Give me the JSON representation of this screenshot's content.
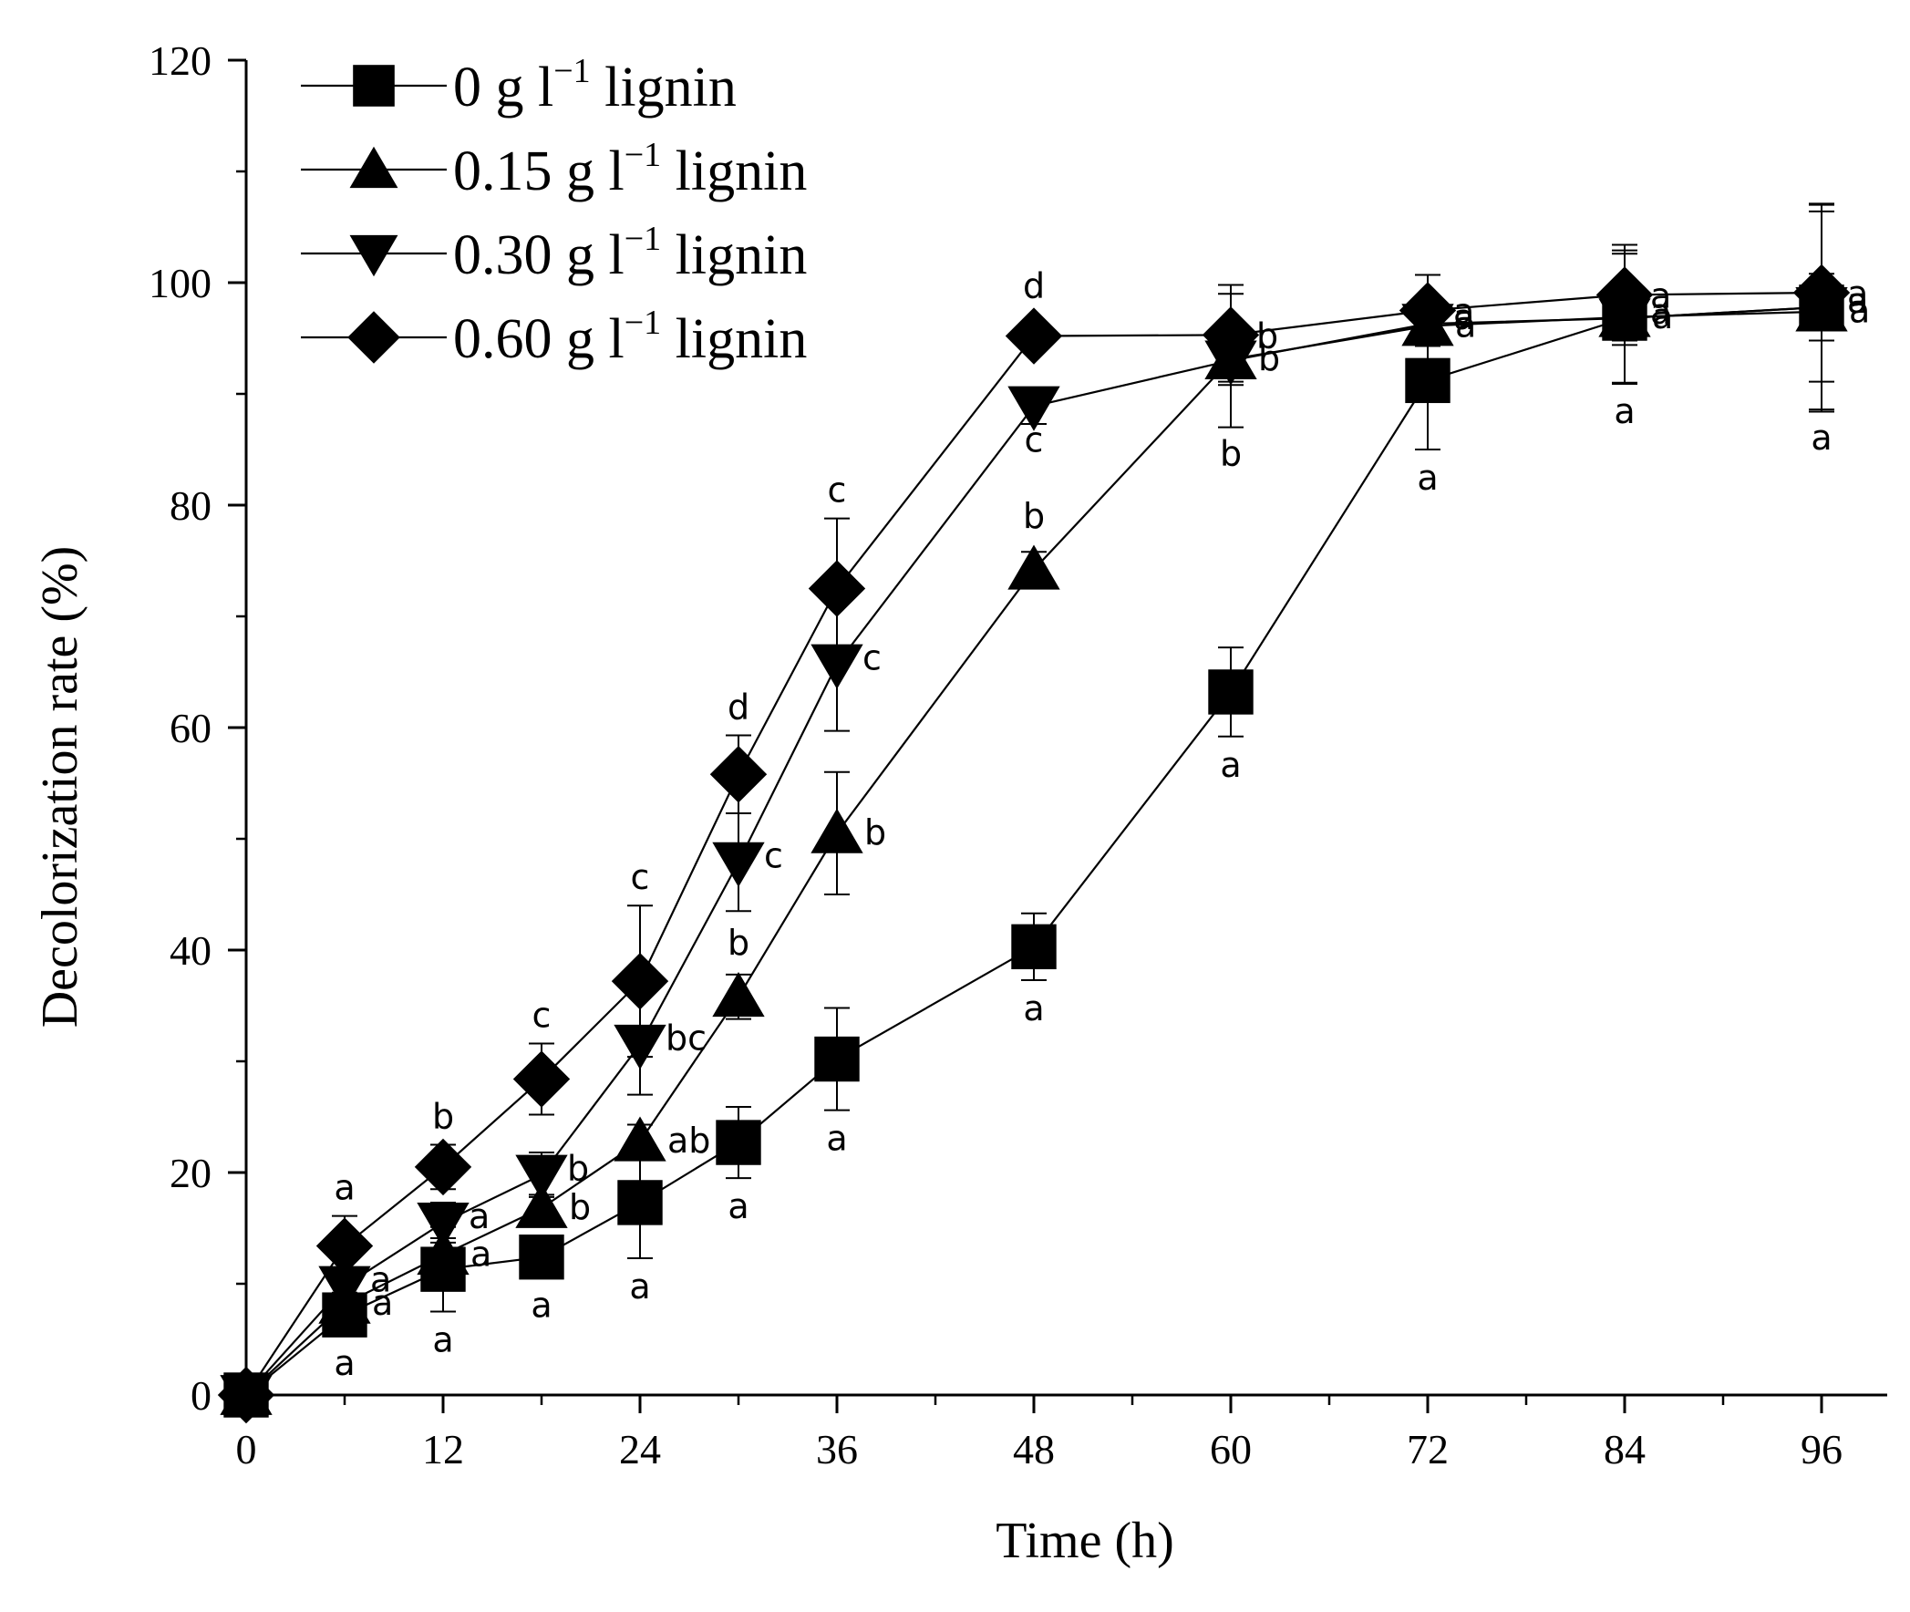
{
  "chart_data": {
    "type": "line",
    "title": "",
    "xlabel": "Time (h)",
    "ylabel": "Decolorization rate (%)",
    "xlim": [
      0,
      100
    ],
    "ylim": [
      0,
      120
    ],
    "xticks": [
      0,
      12,
      24,
      36,
      48,
      60,
      72,
      84,
      96
    ],
    "yticks": [
      0,
      20,
      40,
      60,
      80,
      100,
      120
    ],
    "legend_position": "top-left",
    "series": [
      {
        "name": "0 g l⁻¹ lignin",
        "legend": {
          "prefix": "0 g l",
          "sup": "−1",
          "suffix": " lignin"
        },
        "marker": "square",
        "x": [
          0,
          6,
          12,
          18,
          24,
          30,
          36,
          48,
          60,
          72,
          84,
          96
        ],
        "y": [
          0,
          7.2,
          11.3,
          12.4,
          17.3,
          22.7,
          30.2,
          40.3,
          63.2,
          91.2,
          96.8,
          97.8
        ],
        "err": [
          0,
          1.2,
          3.8,
          1.0,
          5.0,
          3.2,
          4.6,
          3.0,
          4.0,
          6.2,
          5.8,
          9.2
        ],
        "letters": [
          "",
          "a",
          "a",
          "a",
          "a",
          "a",
          "a",
          "a",
          "a",
          "a",
          "a",
          "a"
        ]
      },
      {
        "name": "0.15 g l⁻¹ lignin",
        "legend": {
          "prefix": "0.15 g l",
          "sup": "−1",
          "suffix": " lignin"
        },
        "marker": "triangle-up",
        "x": [
          0,
          6,
          12,
          18,
          24,
          30,
          36,
          48,
          60,
          72,
          84,
          96
        ],
        "y": [
          0,
          8.2,
          12.6,
          16.8,
          22.8,
          35.8,
          50.5,
          74.2,
          93.1,
          96.1,
          96.9,
          97.4
        ],
        "err": [
          0,
          1.0,
          1.5,
          1.2,
          1.5,
          2.0,
          5.5,
          1.6,
          2.0,
          1.5,
          6.0,
          9.0
        ],
        "letters": [
          "",
          "a",
          "a",
          "b",
          "ab",
          "b",
          "b",
          "b",
          "b",
          "a",
          "a",
          "a"
        ]
      },
      {
        "name": "0.30 g l⁻¹ lignin",
        "legend": {
          "prefix": "0.30 g l",
          "sup": "−1",
          "suffix": " lignin"
        },
        "marker": "triangle-down",
        "x": [
          0,
          6,
          12,
          18,
          24,
          30,
          36,
          48,
          60,
          72,
          84,
          96
        ],
        "y": [
          0,
          9.8,
          15.5,
          19.8,
          31.5,
          47.9,
          65.7,
          88.9,
          93.0,
          96.3,
          96.8,
          97.8
        ],
        "err": [
          0,
          1.2,
          1.8,
          2.0,
          4.5,
          4.4,
          6.0,
          1.6,
          6.0,
          2.0,
          2.0,
          3.0
        ],
        "letters": [
          "",
          "a",
          "a",
          "b",
          "bc",
          "c",
          "c",
          "c",
          "b",
          "a",
          "a",
          "a"
        ]
      },
      {
        "name": "0.60 g l⁻¹ lignin",
        "legend": {
          "prefix": "0.60 g l",
          "sup": "−1",
          "suffix": " lignin"
        },
        "marker": "diamond",
        "x": [
          0,
          6,
          12,
          18,
          24,
          30,
          36,
          48,
          60,
          72,
          84,
          96
        ],
        "y": [
          0,
          13.4,
          20.5,
          28.4,
          37.2,
          55.8,
          72.5,
          95.2,
          95.3,
          97.5,
          98.9,
          99.1
        ],
        "err": [
          0,
          2.7,
          2.0,
          3.2,
          6.8,
          3.5,
          6.3,
          0.5,
          4.5,
          3.2,
          4.5,
          8.0
        ],
        "letters": [
          "",
          "a",
          "b",
          "c",
          "c",
          "d",
          "c",
          "d",
          "b",
          "a",
          "a",
          "a"
        ]
      }
    ]
  }
}
